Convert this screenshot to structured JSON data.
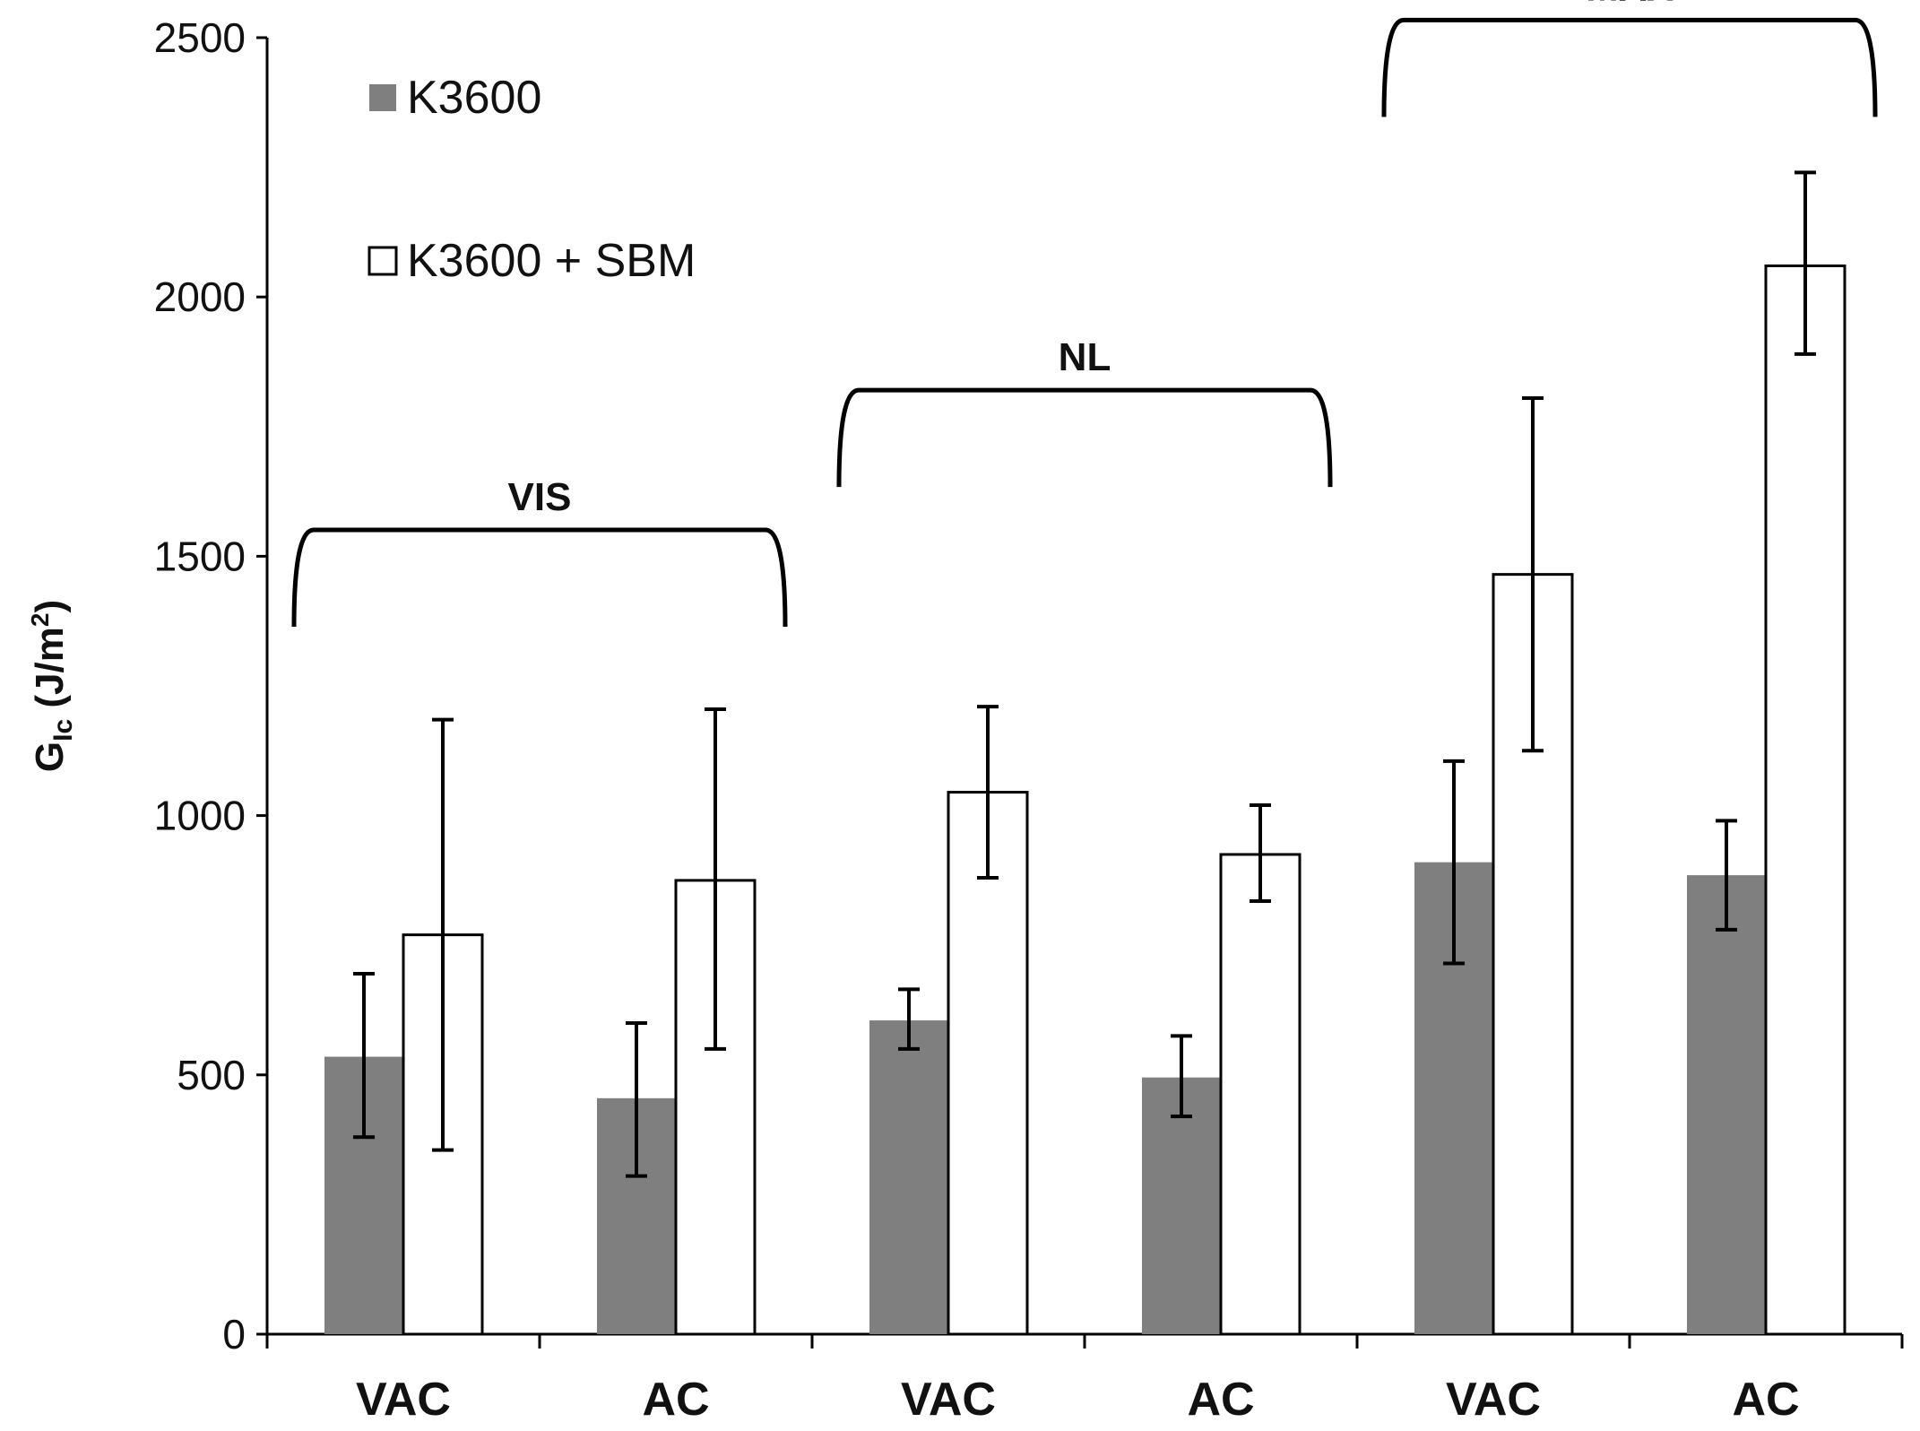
{
  "chart_data": {
    "type": "bar",
    "ylabel_main": "G",
    "ylabel_sub": "Ic",
    "ylabel_unit": "(J/m",
    "ylabel_sup": "2",
    "ylabel_close": ")",
    "ylim": [
      0,
      2500
    ],
    "yticks": [
      0,
      500,
      1000,
      1500,
      2000,
      2500
    ],
    "categories": [
      "VAC",
      "AC",
      "VAC",
      "AC",
      "VAC",
      "AC"
    ],
    "groups": [
      {
        "label": "VIS",
        "categories": [
          0,
          1
        ]
      },
      {
        "label": "NL",
        "categories": [
          2,
          3
        ]
      },
      {
        "label": "MAX",
        "categories": [
          4,
          5
        ]
      }
    ],
    "series": [
      {
        "name": "K3600",
        "color": "#7f7f7f",
        "values": [
          535,
          455,
          605,
          495,
          910,
          885
        ],
        "err_low": [
          380,
          305,
          550,
          420,
          715,
          780
        ],
        "err_high": [
          695,
          600,
          665,
          575,
          1105,
          990
        ]
      },
      {
        "name": "K3600 + SBM",
        "color": "#ffffff",
        "values": [
          770,
          875,
          1045,
          925,
          1465,
          2060
        ],
        "err_low": [
          355,
          550,
          880,
          835,
          1125,
          1890
        ],
        "err_high": [
          1185,
          1205,
          1210,
          1020,
          1805,
          2240
        ]
      }
    ],
    "legend": {
      "placement": "top-left"
    }
  }
}
